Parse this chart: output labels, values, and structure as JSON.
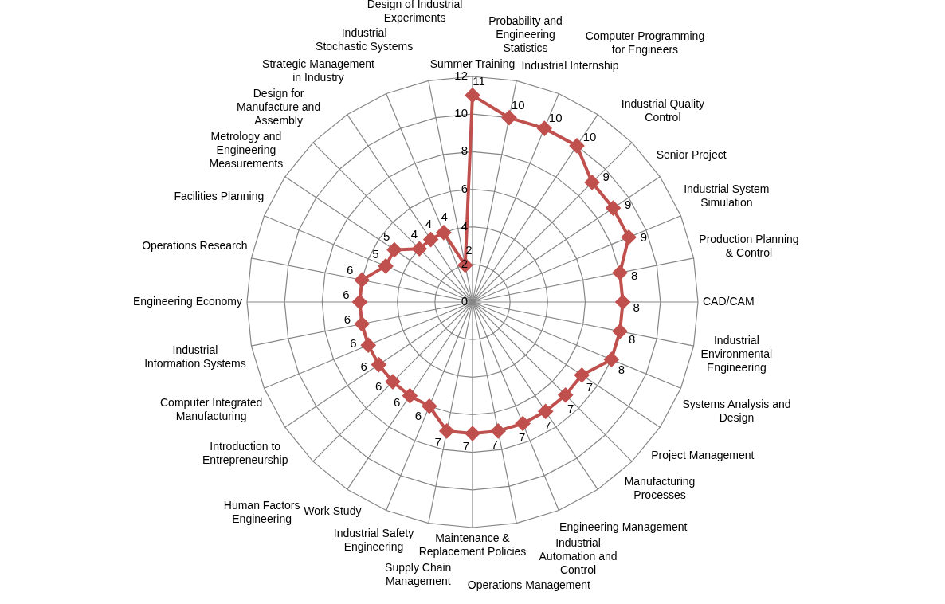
{
  "chart_data": {
    "type": "radar",
    "categories": [
      "Summer Training",
      "Probability and Engineering Statistics",
      "Industrial Internship",
      "Computer Programming for Engineers",
      "Industrial Quality Control",
      "Senior Project",
      "Industrial System Simulation",
      "Production Planning & Control",
      "CAD/CAM",
      "Industrial Environmental Engineering",
      "Systems Analysis and Design",
      "Project Management",
      "Manufacturing Processes",
      "Engineering Management",
      "Industrial Automation and Control",
      "Operations Management",
      "Maintenance & Replacement Policies",
      "Supply Chain Management",
      "Industrial Safety Engineering",
      "Work Study",
      "Human Factors Engineering",
      "Introduction to Entrepreneurship",
      "Computer Integrated Manufacturing",
      "Industrial Information Systems",
      "Engineering Economy",
      "Operations Research",
      "Facilities Planning",
      "Metrology and Engineering Measurements",
      "Design for Manufacture and Assembly",
      "Strategic Management in Industry",
      "Industrial Stochastic Systems",
      "Design of Industrial Experiments"
    ],
    "series": [
      {
        "color": "#c0504d",
        "values": [
          11,
          10,
          10,
          10,
          9,
          9,
          9,
          8,
          8,
          8,
          8,
          7,
          7,
          7,
          7,
          7,
          7,
          7,
          6,
          6,
          6,
          6,
          6,
          6,
          6,
          6,
          5,
          5,
          4,
          4,
          4,
          2
        ]
      }
    ],
    "ylim": [
      0,
      12
    ],
    "yticks": [
      0,
      2,
      4,
      6,
      8,
      10,
      12
    ],
    "grid": true,
    "marker": "diamond",
    "data_labels": true
  }
}
